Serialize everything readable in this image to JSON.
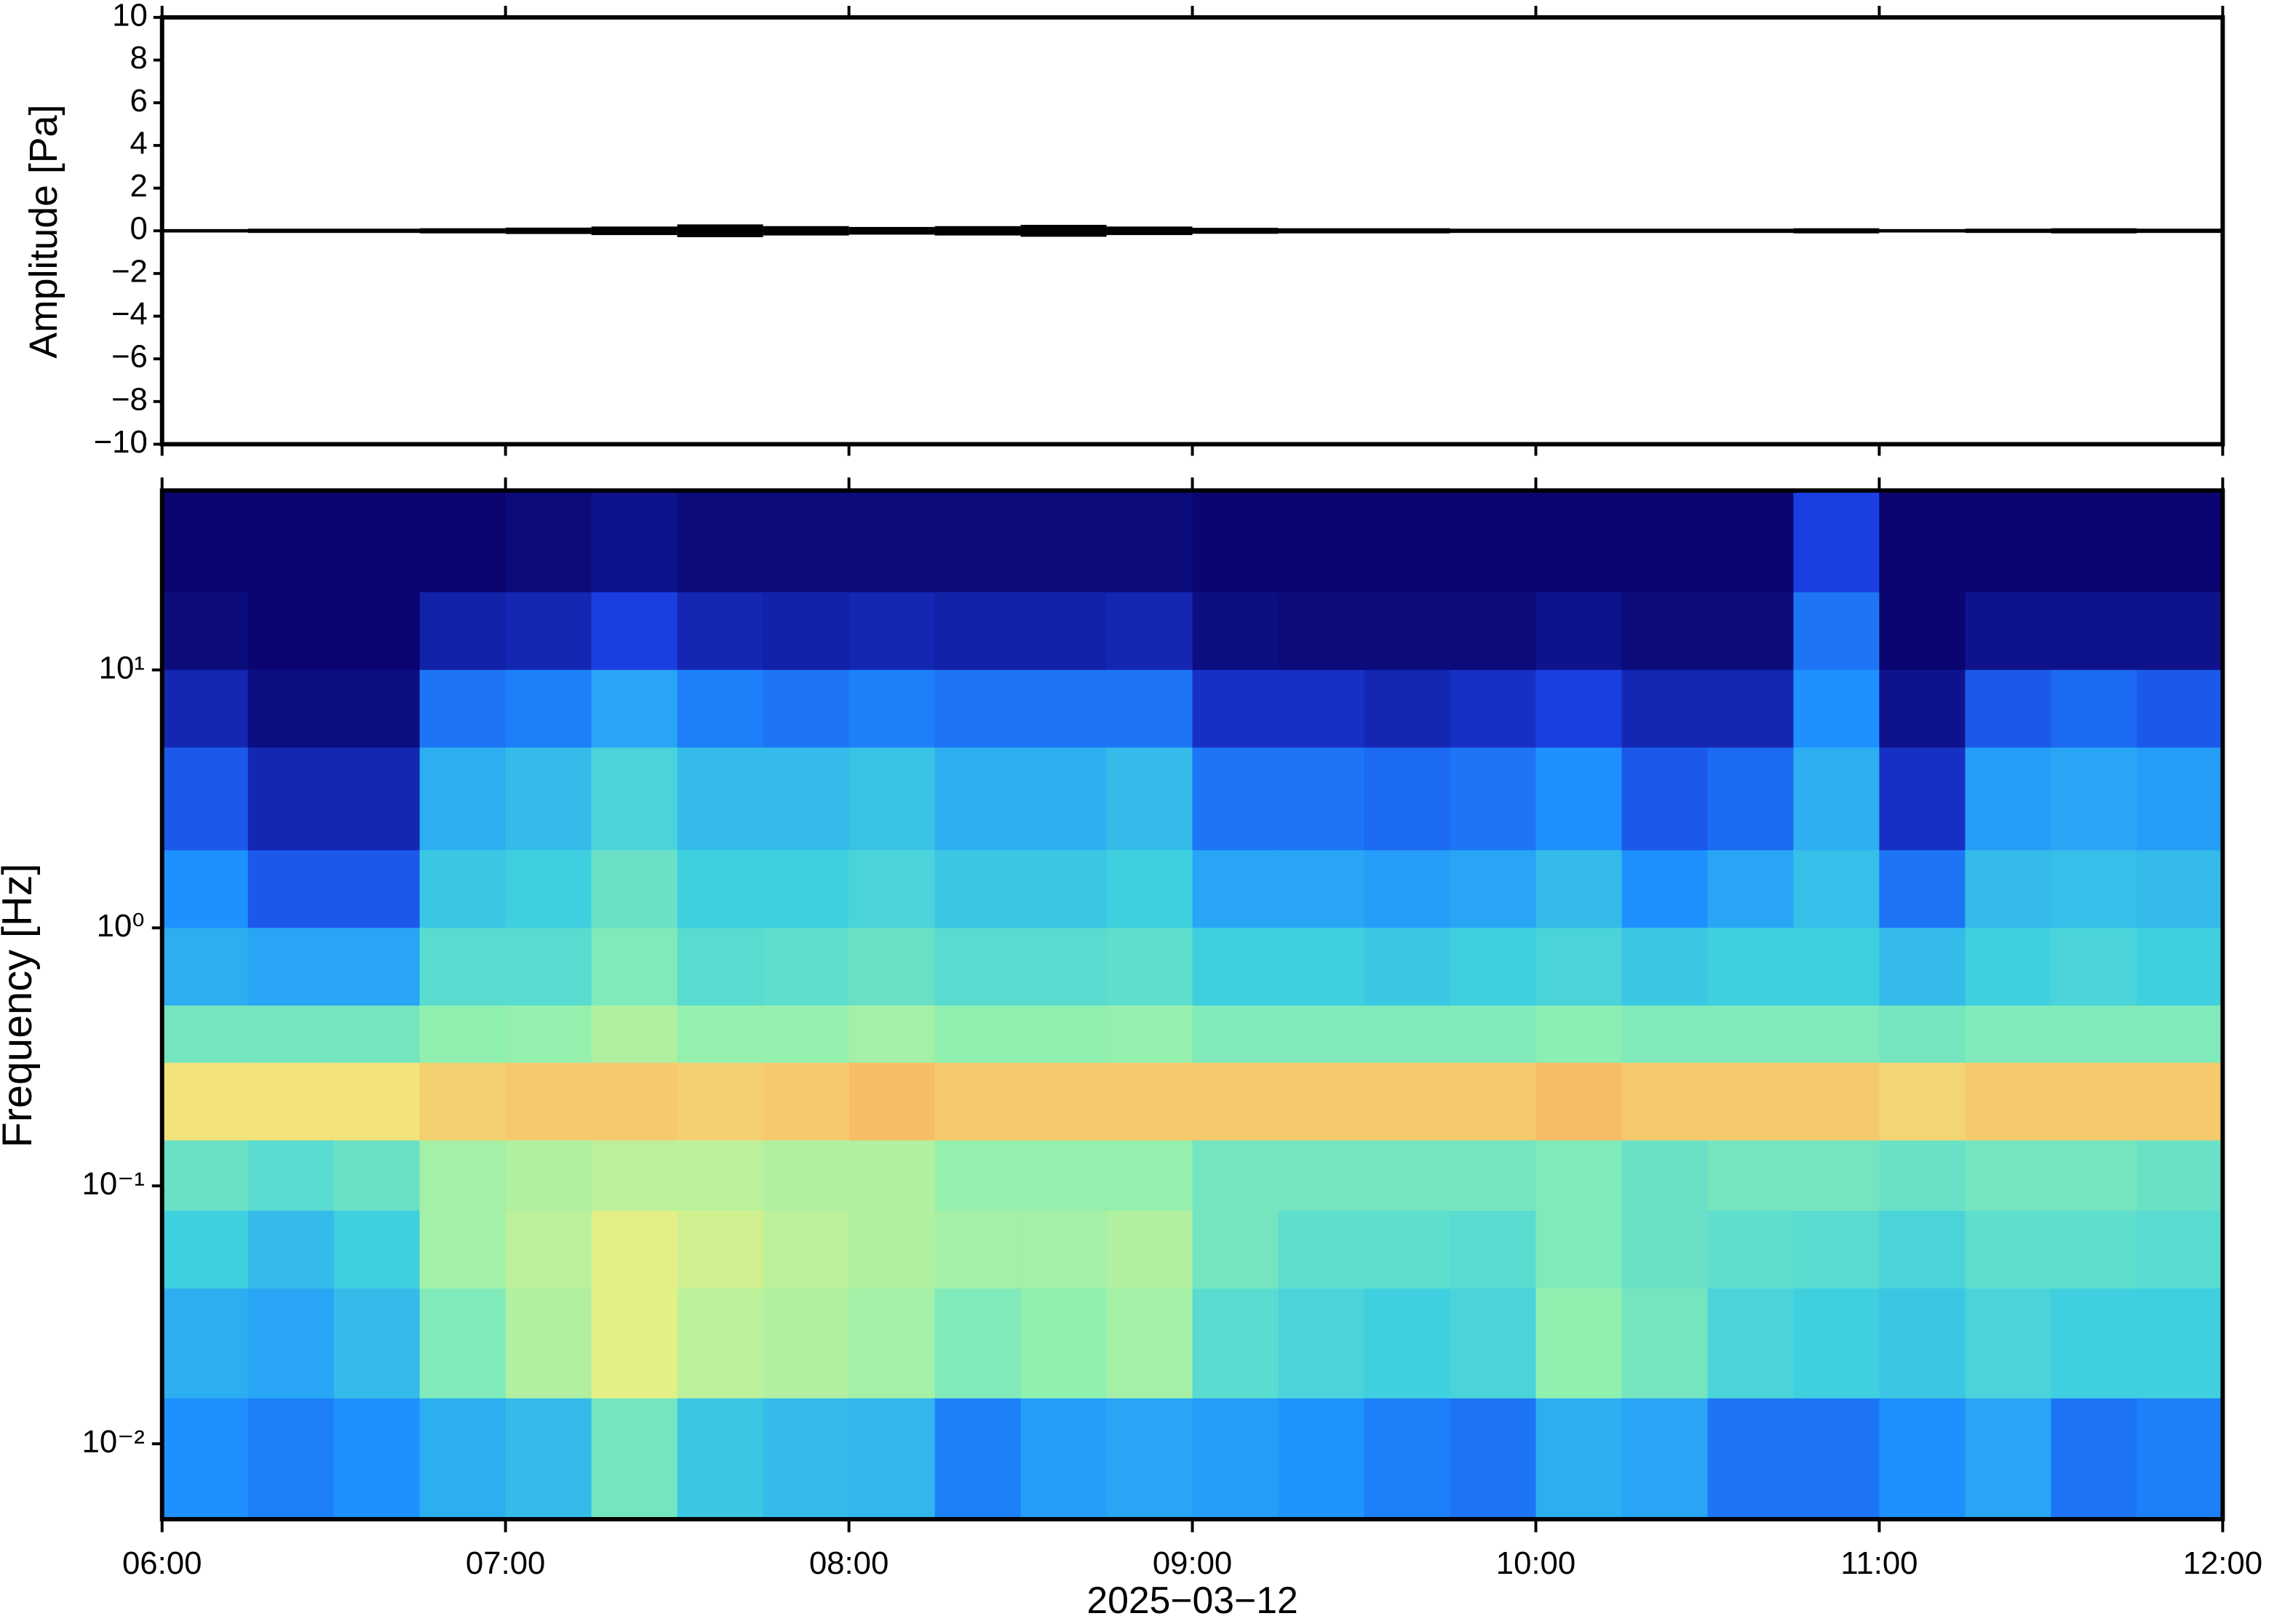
{
  "chart_data": [
    {
      "type": "envelope",
      "ylabel": "Amplitude [Pa]",
      "color": "#000000",
      "xlim": [
        6,
        12
      ],
      "ylim": [
        -10,
        10
      ],
      "yticks": [
        10,
        8,
        6,
        4,
        2,
        0,
        {
          "value": -2,
          "label": "−2"
        },
        {
          "value": -4,
          "label": "−4"
        },
        {
          "value": -6,
          "label": "−6"
        },
        {
          "value": -8,
          "label": "−8"
        },
        {
          "value": -10,
          "label": "−10"
        }
      ],
      "xticks": [
        6,
        7,
        8,
        9,
        10,
        11,
        12
      ],
      "x": [
        6.125,
        6.375,
        6.625,
        6.875,
        7.125,
        7.375,
        7.625,
        7.875,
        8.125,
        8.375,
        8.625,
        8.875,
        9.125,
        9.375,
        9.625,
        9.875,
        10.125,
        10.375,
        10.625,
        10.875,
        11.125,
        11.375,
        11.625,
        11.875
      ],
      "values": [
        0.08,
        0.1,
        0.1,
        0.12,
        0.15,
        0.2,
        0.3,
        0.22,
        0.18,
        0.22,
        0.28,
        0.2,
        0.14,
        0.12,
        0.12,
        0.1,
        0.1,
        0.1,
        0.1,
        0.12,
        0.08,
        0.1,
        0.12,
        0.1
      ]
    },
    {
      "type": "heatmap",
      "ylabel": "Frequency [Hz]",
      "xlabel": "2025−03−12",
      "log_y": true,
      "xlim": [
        6,
        12
      ],
      "ylim": [
        0.0051,
        49.6
      ],
      "xticks": [
        {
          "value": 6,
          "label": "06:00"
        },
        {
          "value": 7,
          "label": "07:00"
        },
        {
          "value": 8,
          "label": "08:00"
        },
        {
          "value": 9,
          "label": "09:00"
        },
        {
          "value": 10,
          "label": "10:00"
        },
        {
          "value": 11,
          "label": "11:00"
        },
        {
          "value": 12,
          "label": "12:00"
        }
      ],
      "yticks": [
        {
          "value": 10,
          "label": "10¹"
        },
        {
          "value": 1,
          "label": "10⁰"
        },
        {
          "value": 0.1,
          "label": "10⁻¹"
        },
        {
          "value": 0.01,
          "label": "10⁻²"
        }
      ],
      "x_bins": [
        6,
        6.25,
        6.5,
        6.75,
        7,
        7.25,
        7.5,
        7.75,
        8,
        8.25,
        8.5,
        8.75,
        9,
        9.25,
        9.5,
        9.75,
        10,
        10.25,
        10.5,
        10.75,
        11,
        11.25,
        11.5,
        11.75,
        12
      ],
      "y_bins": [
        49.6,
        20,
        10,
        5,
        2,
        1,
        0.5,
        0.3,
        0.15,
        0.08,
        0.04,
        0.015,
        0.0051
      ],
      "values": [
        [
          0,
          0,
          0,
          0,
          0.02,
          0.05,
          0.02,
          0.02,
          0.02,
          0.02,
          0.02,
          0.02,
          0,
          0,
          0,
          0,
          0,
          0,
          0,
          0.2,
          0,
          0,
          0,
          0
        ],
        [
          0.02,
          0,
          0,
          0.1,
          0.12,
          0.2,
          0.12,
          0.1,
          0.12,
          0.1,
          0.1,
          0.12,
          0.03,
          0.02,
          0.02,
          0.02,
          0.05,
          0.02,
          0.02,
          0.3,
          0,
          0.05,
          0.05,
          0.05
        ],
        [
          0.12,
          0.03,
          0.03,
          0.3,
          0.32,
          0.4,
          0.32,
          0.3,
          0.32,
          0.3,
          0.3,
          0.3,
          0.15,
          0.15,
          0.12,
          0.15,
          0.2,
          0.12,
          0.12,
          0.35,
          0.05,
          0.25,
          0.28,
          0.25
        ],
        [
          0.25,
          0.12,
          0.12,
          0.42,
          0.45,
          0.52,
          0.45,
          0.45,
          0.47,
          0.42,
          0.42,
          0.45,
          0.3,
          0.3,
          0.28,
          0.3,
          0.35,
          0.25,
          0.28,
          0.42,
          0.15,
          0.38,
          0.4,
          0.38
        ],
        [
          0.35,
          0.25,
          0.25,
          0.48,
          0.5,
          0.58,
          0.5,
          0.5,
          0.52,
          0.48,
          0.48,
          0.5,
          0.4,
          0.4,
          0.38,
          0.4,
          0.45,
          0.35,
          0.4,
          0.46,
          0.3,
          0.45,
          0.46,
          0.45
        ],
        [
          0.42,
          0.4,
          0.4,
          0.55,
          0.55,
          0.62,
          0.55,
          0.56,
          0.58,
          0.55,
          0.55,
          0.56,
          0.5,
          0.5,
          0.48,
          0.5,
          0.52,
          0.48,
          0.5,
          0.5,
          0.45,
          0.5,
          0.52,
          0.5
        ],
        [
          0.6,
          0.6,
          0.6,
          0.65,
          0.66,
          0.7,
          0.66,
          0.66,
          0.68,
          0.65,
          0.65,
          0.66,
          0.62,
          0.62,
          0.62,
          0.62,
          0.64,
          0.62,
          0.62,
          0.62,
          0.6,
          0.62,
          0.62,
          0.62
        ],
        [
          0.82,
          0.82,
          0.82,
          0.85,
          0.86,
          0.86,
          0.85,
          0.86,
          0.88,
          0.86,
          0.86,
          0.86,
          0.86,
          0.86,
          0.86,
          0.86,
          0.88,
          0.86,
          0.86,
          0.86,
          0.84,
          0.86,
          0.86,
          0.86
        ],
        [
          0.58,
          0.55,
          0.58,
          0.68,
          0.7,
          0.72,
          0.72,
          0.7,
          0.7,
          0.66,
          0.66,
          0.66,
          0.6,
          0.6,
          0.6,
          0.6,
          0.62,
          0.58,
          0.6,
          0.6,
          0.58,
          0.6,
          0.6,
          0.58
        ],
        [
          0.5,
          0.45,
          0.5,
          0.68,
          0.72,
          0.78,
          0.75,
          0.72,
          0.7,
          0.68,
          0.68,
          0.7,
          0.6,
          0.56,
          0.56,
          0.55,
          0.62,
          0.58,
          0.56,
          0.55,
          0.52,
          0.56,
          0.56,
          0.55
        ],
        [
          0.42,
          0.4,
          0.45,
          0.62,
          0.7,
          0.78,
          0.72,
          0.7,
          0.68,
          0.62,
          0.65,
          0.68,
          0.55,
          0.52,
          0.5,
          0.52,
          0.65,
          0.6,
          0.52,
          0.5,
          0.48,
          0.52,
          0.5,
          0.5
        ],
        [
          0.35,
          0.32,
          0.35,
          0.42,
          0.45,
          0.6,
          0.48,
          0.45,
          0.44,
          0.32,
          0.38,
          0.4,
          0.38,
          0.36,
          0.32,
          0.3,
          0.42,
          0.4,
          0.3,
          0.3,
          0.35,
          0.4,
          0.3,
          0.32
        ]
      ]
    }
  ]
}
